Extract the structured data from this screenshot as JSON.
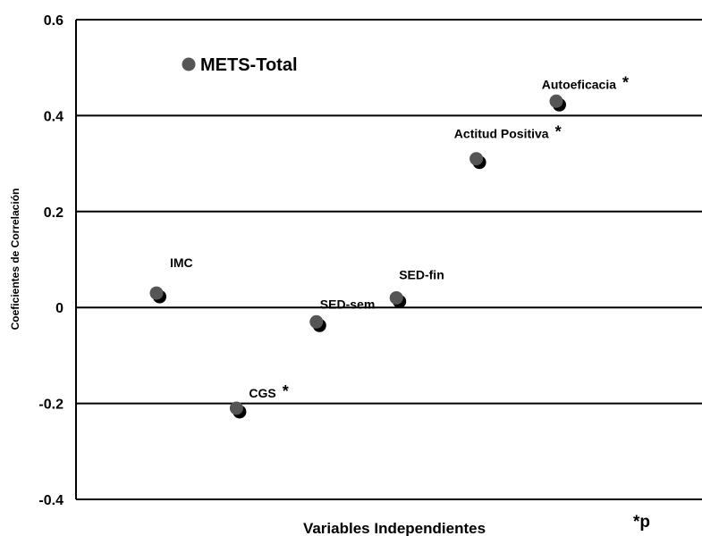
{
  "chart_data": {
    "type": "scatter",
    "title": "",
    "xlabel": "Variables Independientes",
    "ylabel": "Coeficientes de Correlación",
    "ylim": [
      -0.4,
      0.6
    ],
    "yticks": [
      0.6,
      0.4,
      0.2,
      0,
      -0.2,
      -0.4
    ],
    "ytick_labels": [
      "0.6",
      "0.4",
      "0.2",
      "0",
      "-0.2",
      "-0.4"
    ],
    "grid": "horizontal",
    "legend": {
      "label": "METS-Total",
      "position": "top-left"
    },
    "series": [
      {
        "name": "METS-Total",
        "color": "#555555",
        "points": [
          {
            "label": "IMC",
            "y": 0.03,
            "significant": false
          },
          {
            "label": "CGS",
            "y": -0.21,
            "significant": true
          },
          {
            "label": "SED-sem",
            "y": -0.03,
            "significant": false
          },
          {
            "label": "SED-fin",
            "y": 0.02,
            "significant": false
          },
          {
            "label": "Actitud Positiva",
            "y": 0.31,
            "significant": true
          },
          {
            "label": "Autoeficacia",
            "y": 0.43,
            "significant": true
          }
        ]
      }
    ],
    "significance_marker": "*",
    "footnote": "*p"
  }
}
